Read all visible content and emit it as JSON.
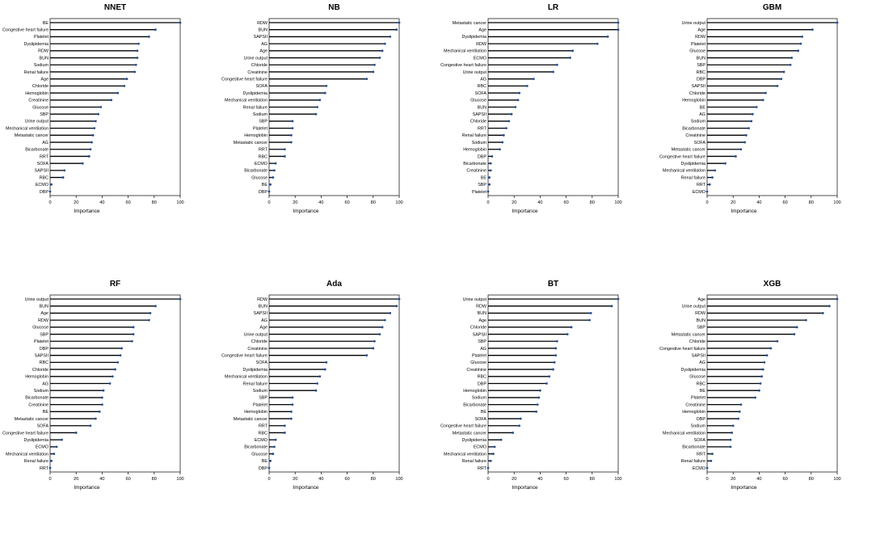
{
  "chart_data": [
    {
      "type": "bar",
      "orientation": "horizontal",
      "title": "NNET",
      "xlabel": "Importance",
      "xlim": [
        0,
        100
      ],
      "xticks": [
        0,
        20,
        40,
        60,
        80,
        100
      ],
      "categories": [
        "BE",
        "Congestive heart failure",
        "Platelet",
        "Dyslipidemia",
        "RDW",
        "BUN",
        "Sodium",
        "Renal failure",
        "Age",
        "Chloride",
        "Hemoglobin",
        "Creatinine",
        "Glucose",
        "SBP",
        "Urine output",
        "Mechanical ventilation",
        "Metastatic cancer",
        "AG",
        "Bicarbonate",
        "RRT",
        "SOFA",
        "SAPSII",
        "RBC",
        "ECMO",
        "DBP"
      ],
      "values": [
        100,
        81,
        76,
        68,
        67,
        67,
        66,
        65,
        59,
        57,
        52,
        47,
        39,
        37,
        35,
        34,
        33,
        32,
        31,
        30,
        25,
        11,
        10,
        1,
        0
      ]
    },
    {
      "type": "bar",
      "orientation": "horizontal",
      "title": "NB",
      "xlabel": "Importance",
      "xlim": [
        0,
        100
      ],
      "xticks": [
        0,
        20,
        40,
        60,
        80,
        100
      ],
      "categories": [
        "RDW",
        "BUN",
        "SAPSII",
        "AG",
        "Age",
        "Urine output",
        "Chloride",
        "Creatinine",
        "Congestive heart failure",
        "SOFA",
        "Dyslipidemia",
        "Mechanical ventilation",
        "Renal failure",
        "Sodium",
        "SBP",
        "Platelet",
        "Hemoglobin",
        "Metastatic cancer",
        "RRT",
        "RBC",
        "ECMO",
        "Bicarbonate",
        "Glucose",
        "BE",
        "DBP"
      ],
      "values": [
        100,
        98,
        93,
        89,
        87,
        85,
        81,
        80,
        75,
        44,
        43,
        39,
        37,
        36,
        18,
        18,
        17,
        17,
        12,
        12,
        5,
        4,
        3,
        1,
        0
      ]
    },
    {
      "type": "bar",
      "orientation": "horizontal",
      "title": "LR",
      "xlabel": "Importance",
      "xlim": [
        0,
        100
      ],
      "xticks": [
        0,
        20,
        40,
        60,
        80,
        100
      ],
      "categories": [
        "Metastatic cancer",
        "Age",
        "Dyslipidemia",
        "RDW",
        "Mechanical ventilation",
        "ECMO",
        "Congestive heart failure",
        "Urine output",
        "AG",
        "RBC",
        "SOFA",
        "Glucose",
        "BUN",
        "SAPSII",
        "Chloride",
        "RRT",
        "Renal failure",
        "Sodium",
        "Hemoglobin",
        "DBP",
        "Bicarbonate",
        "Creatinine",
        "BE",
        "SBP",
        "Platelet"
      ],
      "values": [
        100,
        100,
        92,
        84,
        65,
        63,
        53,
        50,
        35,
        30,
        24,
        23,
        21,
        18,
        16,
        14,
        12,
        11,
        9,
        3,
        2,
        2,
        1,
        1,
        0
      ]
    },
    {
      "type": "bar",
      "orientation": "horizontal",
      "title": "GBM",
      "xlabel": "Importance",
      "xlim": [
        0,
        100
      ],
      "xticks": [
        0,
        20,
        40,
        60,
        80,
        100
      ],
      "categories": [
        "Urine output",
        "Age",
        "RDW",
        "Platelet",
        "Glucose",
        "BUN",
        "SBP",
        "RBC",
        "DBP",
        "SAPSII",
        "Chloride",
        "Hemoglobin",
        "BE",
        "AG",
        "Sodium",
        "Bicarbonate",
        "Creatinine",
        "SOFA",
        "Metastatic cancer",
        "Congestive heart failure",
        "Dyslipidemia",
        "Mechanical ventilation",
        "Renal failure",
        "RRT",
        "ECMO"
      ],
      "values": [
        100,
        81,
        73,
        72,
        70,
        65,
        64,
        59,
        57,
        54,
        45,
        43,
        38,
        35,
        34,
        32,
        30,
        29,
        26,
        22,
        14,
        6,
        4,
        2,
        0
      ]
    },
    {
      "type": "bar",
      "orientation": "horizontal",
      "title": "RF",
      "xlabel": "Importance",
      "xlim": [
        0,
        100
      ],
      "xticks": [
        0,
        20,
        40,
        60,
        80,
        100
      ],
      "categories": [
        "Urine output",
        "BUN",
        "Age",
        "RDW",
        "Glucose",
        "SBP",
        "Platelet",
        "DBP",
        "SAPSII",
        "RBC",
        "Chloride",
        "Hemoglobin",
        "AG",
        "Sodium",
        "Bicarbonate",
        "Creatinine",
        "BE",
        "Metastatic cancer",
        "SOFA",
        "Congestive heart failure",
        "Dyslipidemia",
        "ECMO",
        "Mechanical ventilation",
        "Renal failure",
        "RRT"
      ],
      "values": [
        100,
        81,
        77,
        76,
        64,
        64,
        63,
        55,
        54,
        52,
        50,
        48,
        46,
        41,
        40,
        40,
        38,
        35,
        31,
        20,
        9,
        5,
        3,
        1,
        0
      ]
    },
    {
      "type": "bar",
      "orientation": "horizontal",
      "title": "Ada",
      "xlabel": "Importance",
      "xlim": [
        0,
        100
      ],
      "xticks": [
        0,
        20,
        40,
        60,
        80,
        100
      ],
      "categories": [
        "RDW",
        "BUN",
        "SAPSII",
        "AG",
        "Age",
        "Urine output",
        "Chloride",
        "Creatinine",
        "Congestive heart failure",
        "SOFA",
        "Dyslipidemia",
        "Mechanical ventilation",
        "Renal failure",
        "Sodium",
        "SBP",
        "Platelet",
        "Hemoglobin",
        "Metastatic cancer",
        "RRT",
        "RBC",
        "ECMO",
        "Bicarbonate",
        "Glucose",
        "BE",
        "DBP"
      ],
      "values": [
        100,
        98,
        93,
        89,
        87,
        85,
        81,
        80,
        75,
        44,
        43,
        39,
        37,
        36,
        18,
        18,
        17,
        17,
        12,
        12,
        5,
        4,
        3,
        1,
        0
      ]
    },
    {
      "type": "bar",
      "orientation": "horizontal",
      "title": "BT",
      "xlabel": "Importance",
      "xlim": [
        0,
        100
      ],
      "xticks": [
        0,
        20,
        40,
        60,
        80,
        100
      ],
      "categories": [
        "Urine output",
        "RDW",
        "BUN",
        "Age",
        "Chloride",
        "SAPSII",
        "SBP",
        "AG",
        "Platelet",
        "Glucose",
        "Creatinine",
        "RBC",
        "DBP",
        "Hemoglobin",
        "Sodium",
        "Bicarbonate",
        "BE",
        "SOFA",
        "Congestive heart failure",
        "Metastatic cancer",
        "Dyslipidemia",
        "ECMO",
        "Mechanical ventilation",
        "Renal failure",
        "RRT"
      ],
      "values": [
        100,
        95,
        79,
        78,
        64,
        61,
        53,
        52,
        52,
        51,
        50,
        47,
        45,
        40,
        39,
        38,
        37,
        25,
        24,
        19,
        10,
        5,
        4,
        2,
        0
      ]
    },
    {
      "type": "bar",
      "orientation": "horizontal",
      "title": "XGB",
      "xlabel": "Importance",
      "xlim": [
        0,
        100
      ],
      "xticks": [
        0,
        20,
        40,
        60,
        80,
        100
      ],
      "categories": [
        "Age",
        "Urine output",
        "RDW",
        "BUN",
        "SBP",
        "Metastatic cancer",
        "Chloride",
        "Congestive heart failure",
        "SAPSII",
        "AG",
        "Dyslipidemia",
        "Glucose",
        "RBC",
        "BE",
        "Platelet",
        "Creatinine",
        "Hemoglobin",
        "DBP",
        "Sodium",
        "Mechanical ventilation",
        "SOFA",
        "Bicarbonate",
        "RRT",
        "Renal failure",
        "ECMO"
      ],
      "values": [
        100,
        94,
        89,
        76,
        69,
        67,
        54,
        49,
        46,
        44,
        43,
        42,
        41,
        40,
        37,
        26,
        25,
        24,
        20,
        19,
        18,
        18,
        4,
        3,
        0
      ]
    }
  ]
}
